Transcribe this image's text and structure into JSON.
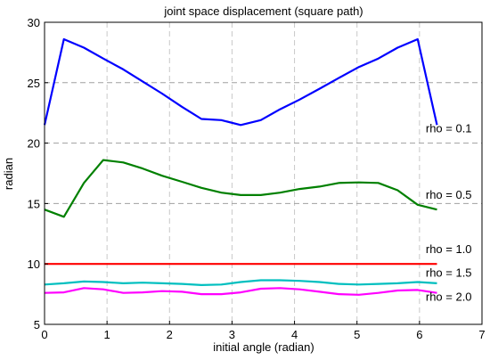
{
  "chart_data": {
    "type": "line",
    "title": "joint space displacement (square path)",
    "xlabel": "initial angle (radian)",
    "ylabel": "radian",
    "xlim": [
      0,
      7
    ],
    "ylim": [
      5,
      30
    ],
    "xticks": [
      0,
      1,
      2,
      3,
      4,
      5,
      6,
      7
    ],
    "yticks": [
      5,
      10,
      15,
      20,
      25,
      30
    ],
    "grid": {
      "vertical": "dashed-gray",
      "horizontal": "dashed-gray-at-15-20-25"
    },
    "series": [
      {
        "color": "#0000ff",
        "x": [
          0,
          0.31,
          0.63,
          0.94,
          1.26,
          1.57,
          1.88,
          2.2,
          2.51,
          2.83,
          3.14,
          3.46,
          3.77,
          4.08,
          4.4,
          4.71,
          5.03,
          5.34,
          5.65,
          5.97,
          6.28
        ],
        "values": [
          21.5,
          28.6,
          27.9,
          27.0,
          26.1,
          25.1,
          24.1,
          23.0,
          22.0,
          21.9,
          21.5,
          21.9,
          22.8,
          23.6,
          24.5,
          25.4,
          26.3,
          27.0,
          27.9,
          28.6,
          21.5
        ]
      },
      {
        "color": "#008000",
        "x": [
          0,
          0.31,
          0.63,
          0.94,
          1.26,
          1.57,
          1.88,
          2.2,
          2.51,
          2.83,
          3.14,
          3.46,
          3.77,
          4.08,
          4.4,
          4.71,
          5.03,
          5.34,
          5.65,
          5.97,
          6.28
        ],
        "values": [
          14.5,
          13.9,
          16.7,
          18.6,
          18.4,
          17.9,
          17.3,
          16.8,
          16.3,
          15.9,
          15.7,
          15.7,
          15.9,
          16.2,
          16.4,
          16.7,
          16.75,
          16.7,
          16.1,
          14.9,
          14.5
        ]
      },
      {
        "color": "#ff0000",
        "x": [
          0,
          6.28
        ],
        "values": [
          10.0,
          10.0
        ]
      },
      {
        "color": "#00bfbf",
        "x": [
          0,
          0.31,
          0.63,
          0.94,
          1.26,
          1.57,
          1.88,
          2.2,
          2.51,
          2.83,
          3.14,
          3.46,
          3.77,
          4.08,
          4.4,
          4.71,
          5.03,
          5.34,
          5.65,
          5.97,
          6.28
        ],
        "values": [
          8.3,
          8.4,
          8.55,
          8.5,
          8.4,
          8.45,
          8.4,
          8.35,
          8.25,
          8.3,
          8.5,
          8.65,
          8.65,
          8.6,
          8.5,
          8.35,
          8.3,
          8.35,
          8.4,
          8.5,
          8.4
        ]
      },
      {
        "color": "#ff00ff",
        "x": [
          0,
          0.31,
          0.63,
          0.94,
          1.26,
          1.57,
          1.88,
          2.2,
          2.51,
          2.83,
          3.14,
          3.46,
          3.77,
          4.08,
          4.4,
          4.71,
          5.03,
          5.34,
          5.65,
          5.97,
          6.28
        ],
        "values": [
          7.6,
          7.65,
          8.0,
          7.9,
          7.6,
          7.65,
          7.75,
          7.7,
          7.5,
          7.5,
          7.65,
          7.95,
          8.0,
          7.9,
          7.7,
          7.5,
          7.45,
          7.6,
          7.8,
          7.85,
          7.6
        ]
      }
    ],
    "annotations": [
      {
        "text": "rho = 0.1",
        "x": 6.1,
        "y": 20.9
      },
      {
        "text": "rho = 0.5",
        "x": 6.1,
        "y": 15.4
      },
      {
        "text": "rho = 1.0",
        "x": 6.1,
        "y": 10.9
      },
      {
        "text": "rho = 1.5",
        "x": 6.1,
        "y": 8.95
      },
      {
        "text": "rho = 2.0",
        "x": 6.1,
        "y": 6.95
      }
    ]
  }
}
